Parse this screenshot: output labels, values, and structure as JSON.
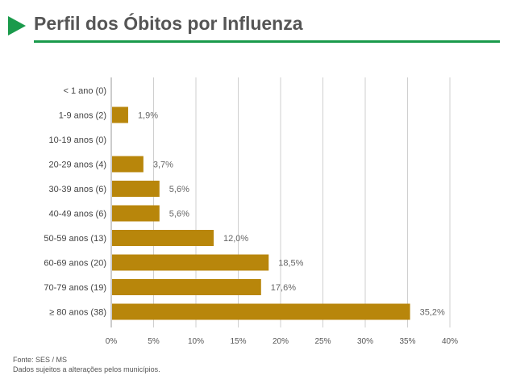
{
  "header": {
    "title": "Perfil dos Óbitos por Influenza"
  },
  "colors": {
    "accent": "#1a9a4b",
    "bar": "#b8860b",
    "grid": "#cfcfcf"
  },
  "chart_data": {
    "type": "bar",
    "orientation": "horizontal",
    "categories": [
      "< 1 ano (0)",
      "1-9 anos (2)",
      "10-19 anos (0)",
      "20-29 anos (4)",
      "30-39 anos (6)",
      "40-49 anos (6)",
      "50-59 anos (13)",
      "60-69 anos (20)",
      "70-79 anos (19)",
      "≥ 80 anos (38)"
    ],
    "values": [
      0,
      1.9,
      0,
      3.7,
      5.6,
      5.6,
      12.0,
      18.5,
      17.6,
      35.2
    ],
    "value_labels": [
      "",
      "1,9%",
      "",
      "3,7%",
      "5,6%",
      "5,6%",
      "12,0%",
      "18,5%",
      "17,6%",
      "35,2%"
    ],
    "xticks": [
      0,
      5,
      10,
      15,
      20,
      25,
      30,
      35,
      40
    ],
    "xtick_labels": [
      "0%",
      "5%",
      "10%",
      "15%",
      "20%",
      "25%",
      "30%",
      "35%",
      "40%"
    ],
    "xlim": [
      0,
      40
    ],
    "grid": true
  },
  "footer": {
    "source": "Fonte: SES / MS",
    "note": "Dados sujeitos a alterações pelos municípios."
  }
}
